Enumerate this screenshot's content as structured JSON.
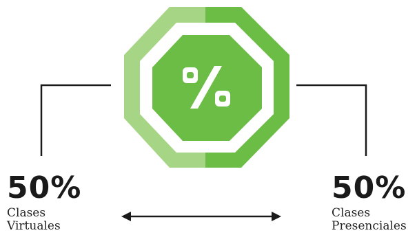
{
  "badge": {
    "symbol": "%",
    "colors": {
      "light_green": "#a6d585",
      "dark_green": "#6cbd45",
      "white": "#ffffff"
    }
  },
  "left": {
    "percent": "50%",
    "label_line1": "Clases",
    "label_line2": "Virtuales"
  },
  "right": {
    "percent": "50%",
    "label_line1": "Clases",
    "label_line2": "Presenciales"
  },
  "connector_color": "#1a1a1a"
}
